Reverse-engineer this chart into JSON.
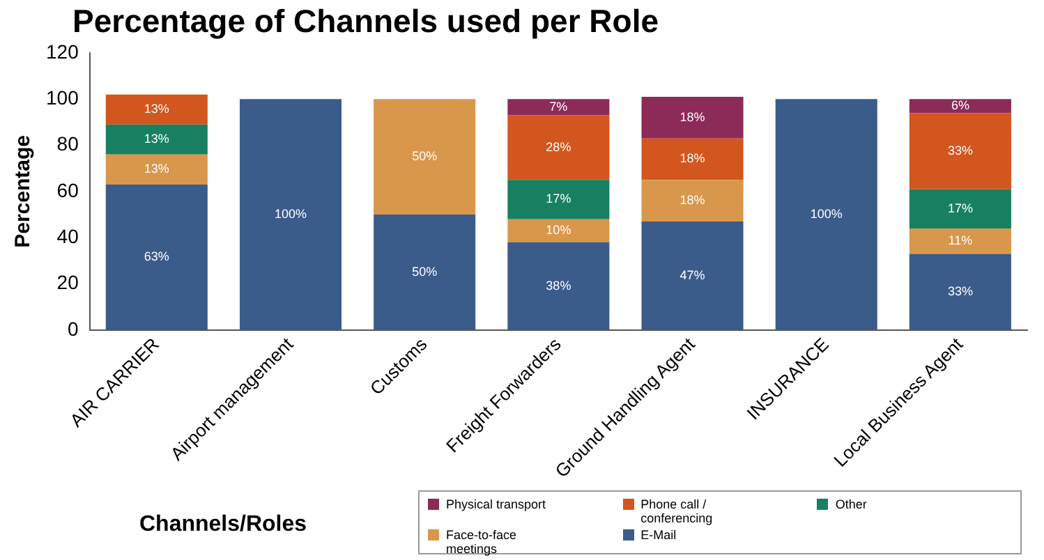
{
  "chart_data": {
    "type": "bar",
    "title": "Percentage of Channels used per Role",
    "xlabel": "Channels/Roles",
    "ylabel": "Percentage",
    "categories": [
      "AIR CARRIER",
      "Airport management",
      "Customs",
      "Freight Forwarders",
      "Ground Handling Agent",
      "INSURANCE",
      "Local Business Agent"
    ],
    "stacked": true,
    "ylim": [
      0,
      120
    ],
    "yticks": [
      0,
      20,
      40,
      60,
      80,
      100,
      120
    ],
    "grid": false,
    "legend": "bottom right",
    "series": [
      {
        "name": "E-Mail",
        "color": "#3b5b8a",
        "values": [
          63,
          100,
          50,
          38,
          47,
          100,
          33
        ],
        "value_labels": [
          "63%",
          "100%",
          "50%",
          "38%",
          "47%",
          "100%",
          "33%"
        ]
      },
      {
        "name": "Face-to-face meetings",
        "color": "#d9974c",
        "values": [
          13,
          null,
          50,
          10,
          18,
          null,
          11
        ],
        "value_labels": [
          "13%",
          null,
          "50%",
          "10%",
          "18%",
          null,
          "11%"
        ]
      },
      {
        "name": "Other",
        "color": "#178060",
        "values": [
          13,
          null,
          null,
          17,
          null,
          null,
          17
        ],
        "value_labels": [
          "13%",
          null,
          null,
          "17%",
          null,
          null,
          "17%"
        ]
      },
      {
        "name": "Phone call / conferencing",
        "color": "#d2561e",
        "values": [
          13,
          null,
          null,
          28,
          18,
          null,
          33
        ],
        "value_labels": [
          "13%",
          null,
          null,
          "28%",
          "18%",
          null,
          "33%"
        ]
      },
      {
        "name": "Physical transport",
        "color": "#8c2a58",
        "values": [
          null,
          null,
          null,
          7,
          18,
          null,
          6
        ],
        "value_labels": [
          null,
          null,
          null,
          "7%",
          "18%",
          null,
          "6%"
        ]
      }
    ]
  }
}
